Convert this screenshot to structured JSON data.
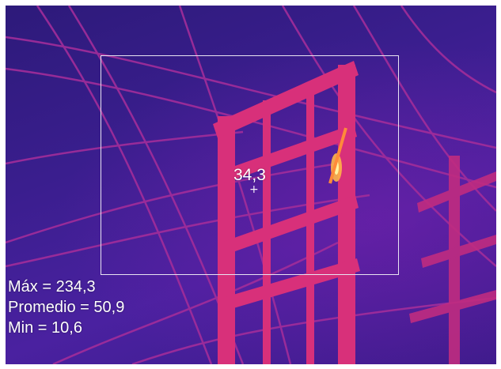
{
  "measurement": {
    "spot_value": "34,3",
    "stats": [
      {
        "label": "Máx = 234,3"
      },
      {
        "label": "Promedio = 50,9"
      },
      {
        "label": "Min = 10,6"
      }
    ]
  },
  "colors": {
    "background": "#3a1e8e",
    "structure": "#d8307a",
    "wire": "#b0309a",
    "hotspot": "#ffd24a",
    "roi_border": "#e9e4f2"
  },
  "icons": {
    "crosshair": "crosshair-icon"
  }
}
